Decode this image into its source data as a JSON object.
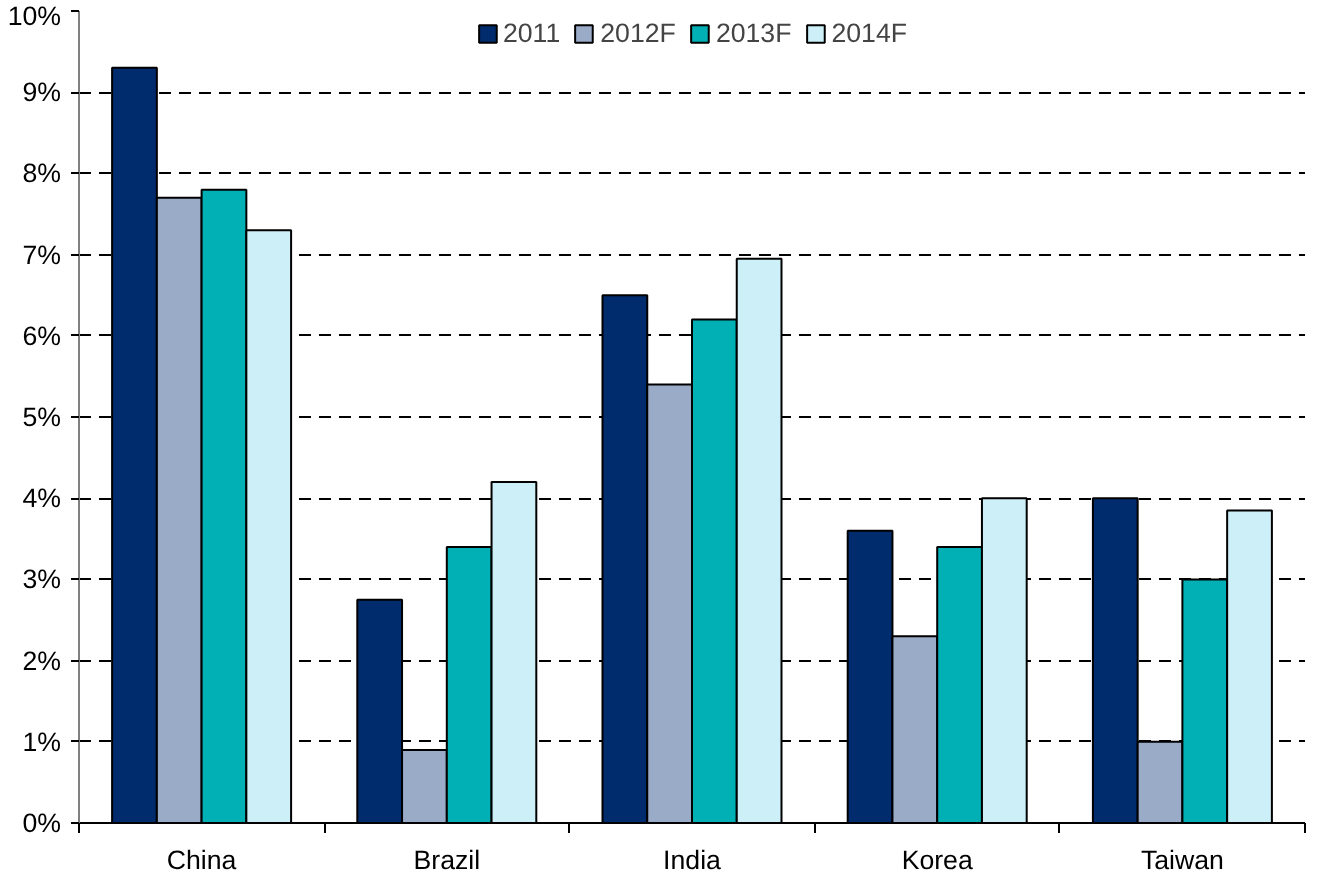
{
  "chart_data": {
    "type": "bar",
    "categories": [
      "China",
      "Brazil",
      "India",
      "Korea",
      "Taiwan"
    ],
    "series": [
      {
        "name": "2011",
        "color": "#002b6c",
        "values": [
          9.3,
          2.75,
          6.5,
          3.6,
          4.0
        ]
      },
      {
        "name": "2012F",
        "color": "#9aabc8",
        "values": [
          7.7,
          0.9,
          5.4,
          2.3,
          1.0
        ]
      },
      {
        "name": "2013F",
        "color": "#00b0b4",
        "values": [
          7.8,
          3.4,
          6.2,
          3.4,
          3.0
        ]
      },
      {
        "name": "2014F",
        "color": "#cdf0f8",
        "values": [
          7.3,
          4.2,
          6.95,
          4.0,
          3.85
        ]
      }
    ],
    "ylim": [
      0,
      10
    ],
    "yticks": [
      {
        "value": 0,
        "label": "0%"
      },
      {
        "value": 1,
        "label": "1%"
      },
      {
        "value": 2,
        "label": "2%"
      },
      {
        "value": 3,
        "label": "3%"
      },
      {
        "value": 4,
        "label": "4%"
      },
      {
        "value": 5,
        "label": "5%"
      },
      {
        "value": 6,
        "label": "6%"
      },
      {
        "value": 7,
        "label": "7%"
      },
      {
        "value": 8,
        "label": "8%"
      },
      {
        "value": 9,
        "label": "9%"
      },
      {
        "value": 10,
        "label": "10%"
      }
    ],
    "grid": "y",
    "legend": "top"
  }
}
